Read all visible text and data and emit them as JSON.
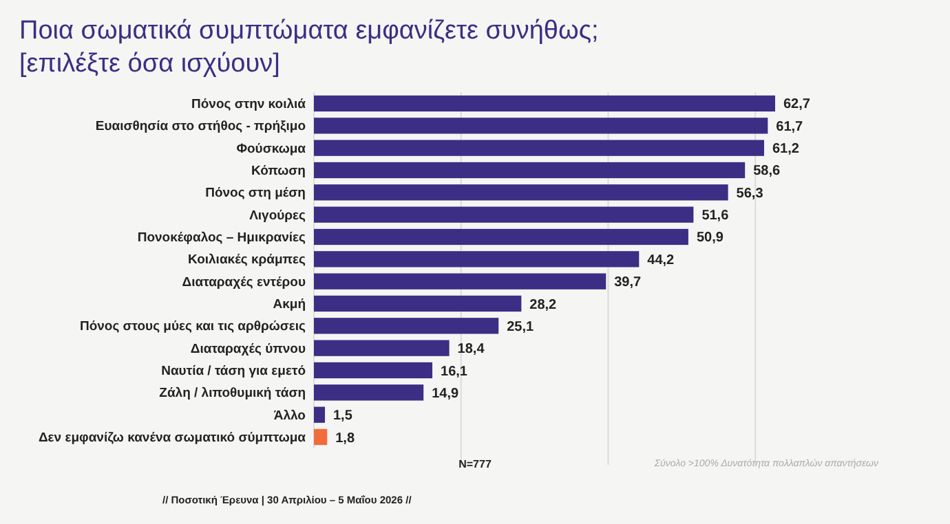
{
  "chart_data": {
    "type": "bar",
    "orientation": "horizontal",
    "title": "Ποια σωματικά συμπτώματα εμφανίζετε συνήθως;",
    "subtitle": "[επιλέξτε όσα ισχύουν]",
    "categories": [
      "Πόνος στην κοιλιά",
      "Ευαισθησία στο στήθος - πρήξιμο",
      "Φούσκωμα",
      "Κόπωση",
      "Πόνος στη μέση",
      "Λιγούρες",
      "Πονοκέφαλος – Ημικρανίες",
      "Κοιλιακές κράμπες",
      "Διαταραχές εντέρου",
      "Ακμή",
      "Πόνος στους μύες και τις αρθρώσεις",
      "Διαταραχές ύπνου",
      "Ναυτία / τάση για εμετό",
      "Ζάλη / λιποθυμική τάση",
      "Άλλο",
      "Δεν εμφανίζω κανένα σωματικό σύμπτωμα"
    ],
    "values": [
      62.7,
      61.7,
      61.2,
      58.6,
      56.3,
      51.6,
      50.9,
      44.2,
      39.7,
      28.2,
      25.1,
      18.4,
      16.1,
      14.9,
      1.5,
      1.8
    ],
    "value_labels": [
      "62,7",
      "61,7",
      "61,2",
      "58,6",
      "56,3",
      "51,6",
      "50,9",
      "44,2",
      "39,7",
      "28,2",
      "25,1",
      "18,4",
      "16,1",
      "14,9",
      "1,5",
      "1,8"
    ],
    "colors": [
      "#3b2e84",
      "#3b2e84",
      "#3b2e84",
      "#3b2e84",
      "#3b2e84",
      "#3b2e84",
      "#3b2e84",
      "#3b2e84",
      "#3b2e84",
      "#3b2e84",
      "#3b2e84",
      "#3b2e84",
      "#3b2e84",
      "#3b2e84",
      "#3b2e84",
      "#f26b3a"
    ],
    "xticks": [
      {
        "value": 20,
        "label": null
      },
      {
        "value": 40,
        "label": null
      },
      {
        "value": 60,
        "label": null
      }
    ],
    "grid": "x",
    "tick_labels": "y",
    "annotations": [
      "N=777",
      "Σύνολο >100% Δυνατότητα πολλαπλών απαντήσεων",
      "// Ποσοτική Έρευνα | 30 Απριλίου – 5 Μαΐου 2026 //"
    ]
  }
}
